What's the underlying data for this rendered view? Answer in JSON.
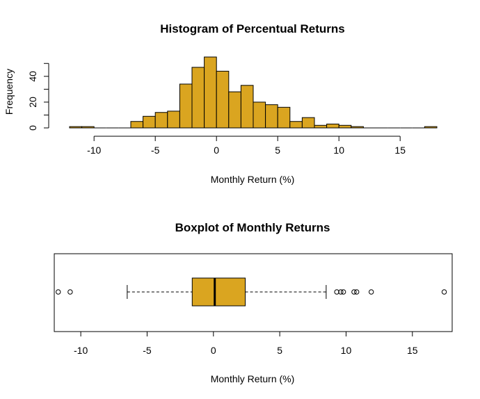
{
  "colors": {
    "fill": "#DAA520",
    "stroke": "#000000",
    "background": "#FFFFFF"
  },
  "chart_data": [
    {
      "type": "bar",
      "title": "Histogram of Percentual Returns",
      "xlabel": "Monthly Return (%)",
      "ylabel": "Frequency",
      "xlim": [
        -12,
        18
      ],
      "ylim": [
        0,
        55
      ],
      "x_ticks": [
        -10,
        -5,
        0,
        5,
        10,
        15
      ],
      "y_ticks": [
        0,
        20,
        40
      ],
      "bin_width": 1,
      "bins": [
        {
          "x0": -12,
          "x1": -11,
          "value": 1
        },
        {
          "x0": -11,
          "x1": -10,
          "value": 1
        },
        {
          "x0": -10,
          "x1": -9,
          "value": 0
        },
        {
          "x0": -9,
          "x1": -8,
          "value": 0
        },
        {
          "x0": -8,
          "x1": -7,
          "value": 0
        },
        {
          "x0": -7,
          "x1": -6,
          "value": 5
        },
        {
          "x0": -6,
          "x1": -5,
          "value": 9
        },
        {
          "x0": -5,
          "x1": -4,
          "value": 12
        },
        {
          "x0": -4,
          "x1": -3,
          "value": 13
        },
        {
          "x0": -3,
          "x1": -2,
          "value": 34
        },
        {
          "x0": -2,
          "x1": -1,
          "value": 47
        },
        {
          "x0": -1,
          "x1": 0,
          "value": 55
        },
        {
          "x0": 0,
          "x1": 1,
          "value": 44
        },
        {
          "x0": 1,
          "x1": 2,
          "value": 28
        },
        {
          "x0": 2,
          "x1": 3,
          "value": 33
        },
        {
          "x0": 3,
          "x1": 4,
          "value": 20
        },
        {
          "x0": 4,
          "x1": 5,
          "value": 18
        },
        {
          "x0": 5,
          "x1": 6,
          "value": 16
        },
        {
          "x0": 6,
          "x1": 7,
          "value": 5
        },
        {
          "x0": 7,
          "x1": 8,
          "value": 8
        },
        {
          "x0": 8,
          "x1": 9,
          "value": 2
        },
        {
          "x0": 9,
          "x1": 10,
          "value": 3
        },
        {
          "x0": 10,
          "x1": 11,
          "value": 2
        },
        {
          "x0": 11,
          "x1": 12,
          "value": 1
        },
        {
          "x0": 12,
          "x1": 13,
          "value": 0
        },
        {
          "x0": 13,
          "x1": 14,
          "value": 0
        },
        {
          "x0": 14,
          "x1": 15,
          "value": 0
        },
        {
          "x0": 15,
          "x1": 16,
          "value": 0
        },
        {
          "x0": 16,
          "x1": 17,
          "value": 0
        },
        {
          "x0": 17,
          "x1": 18,
          "value": 1
        }
      ]
    },
    {
      "type": "boxplot",
      "title": "Boxplot of Monthly Returns",
      "xlabel": "Monthly Return (%)",
      "xlim": [
        -12,
        18
      ],
      "x_ticks": [
        -10,
        -5,
        0,
        5,
        10,
        15
      ],
      "whisker_low": -6.5,
      "q1": -1.6,
      "median": 0.1,
      "q3": 2.4,
      "whisker_high": 8.5,
      "outliers": [
        -11.7,
        -10.8,
        9.3,
        9.6,
        9.8,
        10.6,
        10.8,
        11.9,
        17.4
      ]
    }
  ]
}
